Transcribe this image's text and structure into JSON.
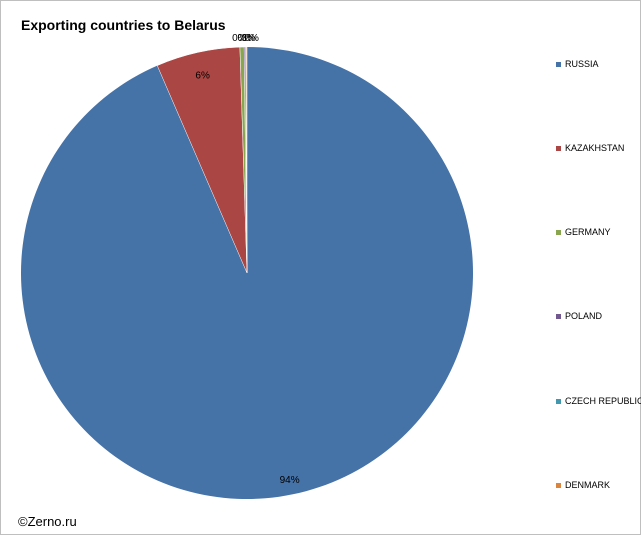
{
  "watermark": "©Zerno.ru",
  "chart_data": {
    "type": "pie",
    "title": "Exporting countries to Belarus",
    "categories": [
      "RUSSIA",
      "KAZAKHSTAN",
      "GERMANY",
      "POLAND",
      "CZECH REPUBLIC",
      "DENMARK"
    ],
    "values": [
      93.5,
      6.0,
      0.3,
      0.1,
      0.05,
      0.05
    ],
    "data_labels": [
      "94%",
      "6%",
      "0%",
      "0%",
      "0%",
      "0%"
    ],
    "colors": [
      "#4572a7",
      "#aa4643",
      "#89a54e",
      "#71588f",
      "#4198af",
      "#db843d"
    ],
    "legend_position": "right"
  }
}
